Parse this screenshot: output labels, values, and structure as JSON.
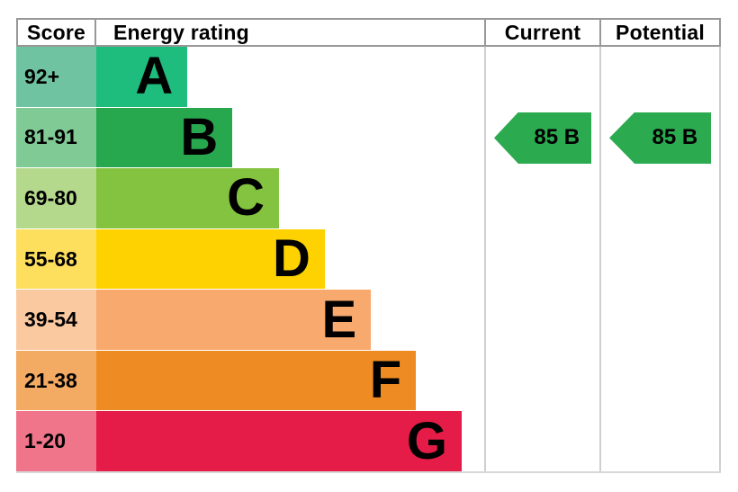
{
  "header": {
    "score": "Score",
    "rating": "Energy rating",
    "current": "Current",
    "potential": "Potential"
  },
  "chart_data": {
    "type": "bar",
    "title": "Energy rating",
    "orientation": "horizontal",
    "columns": [
      "Score",
      "Energy rating",
      "Current",
      "Potential"
    ],
    "categories": [
      "A",
      "B",
      "C",
      "D",
      "E",
      "F",
      "G"
    ],
    "bands": [
      {
        "letter": "A",
        "score_range": "92+",
        "bar_color": "#1ebc7d",
        "score_color": "#6fc3a1",
        "width_pct": 23.5
      },
      {
        "letter": "B",
        "score_range": "81-91",
        "bar_color": "#27a84e",
        "score_color": "#7fca95",
        "width_pct": 35.1
      },
      {
        "letter": "C",
        "score_range": "69-80",
        "bar_color": "#84c33f",
        "score_color": "#b5d98c",
        "width_pct": 47.1
      },
      {
        "letter": "D",
        "score_range": "55-68",
        "bar_color": "#fdd200",
        "score_color": "#fedf5d",
        "width_pct": 58.9
      },
      {
        "letter": "E",
        "score_range": "39-54",
        "bar_color": "#f8a96d",
        "score_color": "#fbc9a0",
        "width_pct": 70.8
      },
      {
        "letter": "F",
        "score_range": "21-38",
        "bar_color": "#ef8b23",
        "score_color": "#f3aa62",
        "width_pct": 82.4
      },
      {
        "letter": "G",
        "score_range": "1-20",
        "bar_color": "#e61c48",
        "score_color": "#f0758b",
        "width_pct": 94.2
      }
    ],
    "current": {
      "value": 85,
      "letter": "B",
      "label": "85 B",
      "arrow_color": "#2baa50"
    },
    "potential": {
      "value": 85,
      "letter": "B",
      "label": "85 B",
      "arrow_color": "#2baa50"
    }
  }
}
